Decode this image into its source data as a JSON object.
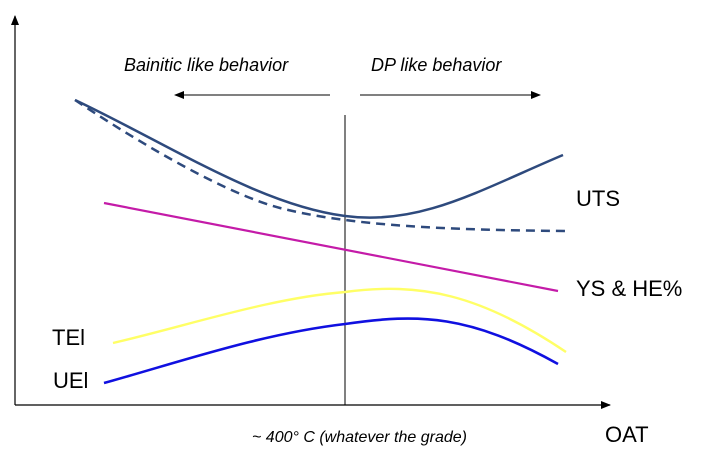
{
  "regions": {
    "left_label": "Bainitic like behavior",
    "right_label": "DP like behavior"
  },
  "curves": {
    "uts": "UTS",
    "ys_he": "YS & HE%",
    "tel": "TEl",
    "uel": "UEl"
  },
  "axis": {
    "x_label": "OAT",
    "threshold_note": "~ 400° C (whatever the grade)"
  },
  "colors": {
    "uts": "#2e4a7d",
    "ys_he": "#c41ba8",
    "tel": "#ffff66",
    "uel": "#1010e0",
    "axis": "#000000"
  }
}
